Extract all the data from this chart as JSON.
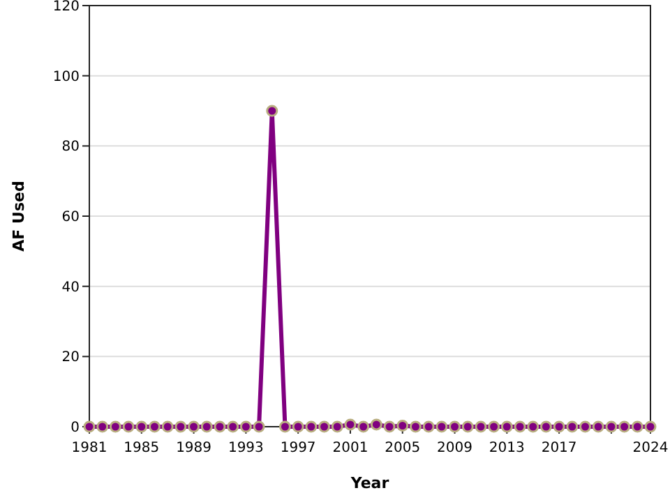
{
  "chart_data": {
    "type": "line",
    "xlabel": "Year",
    "ylabel": "AF Used",
    "x": [
      1981,
      1982,
      1983,
      1984,
      1985,
      1986,
      1987,
      1988,
      1989,
      1990,
      1991,
      1992,
      1993,
      1994,
      1995,
      1996,
      1997,
      1998,
      1999,
      2000,
      2001,
      2002,
      2003,
      2004,
      2005,
      2006,
      2007,
      2008,
      2009,
      2010,
      2011,
      2012,
      2013,
      2014,
      2015,
      2016,
      2017,
      2018,
      2019,
      2020,
      2021,
      2022,
      2023,
      2024
    ],
    "series": [
      {
        "color": "#800080",
        "values": [
          0,
          0,
          0,
          0,
          0,
          0,
          0,
          0,
          0,
          0,
          0,
          0,
          0,
          0,
          90,
          0,
          0,
          0,
          0,
          0,
          0.6,
          0,
          0.6,
          0,
          0.3,
          0,
          0,
          0,
          0,
          0,
          0,
          0,
          0,
          0,
          0,
          0,
          0,
          0,
          0,
          0,
          0,
          0,
          0,
          0
        ]
      }
    ],
    "xlim": [
      1981,
      2024
    ],
    "xticks": [
      1981,
      1985,
      1989,
      1993,
      1997,
      2001,
      2005,
      2009,
      2013,
      2017,
      {
        "value": 2021,
        "label": null
      },
      2024
    ],
    "ylim": [
      0,
      120
    ],
    "yticks": [
      0,
      20,
      40,
      60,
      80,
      100,
      120
    ],
    "grid": "y",
    "marker": "circle",
    "line_style": "solid"
  }
}
